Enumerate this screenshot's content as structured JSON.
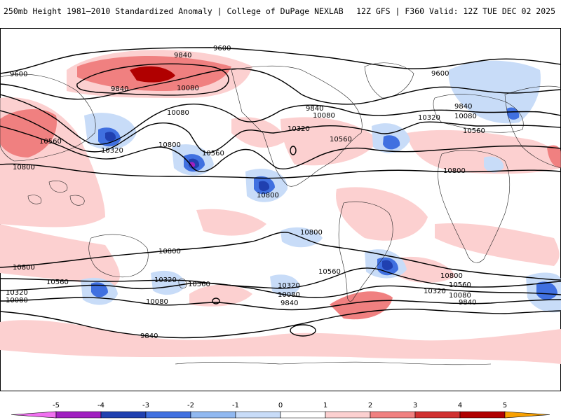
{
  "header": {
    "left_title": "250mb Height 1981–2010 Standardized Anomaly | College of DuPage NEXLAB",
    "right_title": "12Z GFS | F360 Valid: 12Z TUE DEC 02 2025"
  },
  "colorbar": {
    "ticks": [
      "-5",
      "-4",
      "-3",
      "-2",
      "-1",
      "0",
      "1",
      "2",
      "3",
      "4",
      "5"
    ],
    "colors": [
      "#f070f0",
      "#a020c0",
      "#2040b0",
      "#4070e0",
      "#c8dcf8",
      "#ffffff",
      "#fcd0d0",
      "#f08080",
      "#d03030",
      "#b00000",
      "#f8a000"
    ]
  },
  "contour_labels": [
    {
      "text": "9600",
      "name": "contour-label-9600-north-pacific"
    },
    {
      "text": "9600",
      "name": "contour-label-9600-west"
    },
    {
      "text": "9600",
      "name": "contour-label-9600-atlantic"
    },
    {
      "text": "9840",
      "name": "contour-label-9840-siberia"
    },
    {
      "text": "9840",
      "name": "contour-label-9840-west"
    },
    {
      "text": "9840",
      "name": "contour-label-9840-canada"
    },
    {
      "text": "9840",
      "name": "contour-label-9840-europe"
    },
    {
      "text": "10080",
      "name": "contour-label-10080-arctic"
    },
    {
      "text": "10080",
      "name": "contour-label-10080-pacific"
    },
    {
      "text": "10080",
      "name": "contour-label-10080-canada"
    },
    {
      "text": "10080",
      "name": "contour-label-10080-europe"
    },
    {
      "text": "10320",
      "name": "contour-label-10320-us"
    },
    {
      "text": "10320",
      "name": "contour-label-10320-asia"
    },
    {
      "text": "10320",
      "name": "contour-label-10320-atlantic"
    },
    {
      "text": "10560",
      "name": "contour-label-10560-asia"
    },
    {
      "text": "10560",
      "name": "contour-label-10560-pacific"
    },
    {
      "text": "10560",
      "name": "contour-label-10560-us"
    },
    {
      "text": "10560",
      "name": "contour-label-10560-africa"
    },
    {
      "text": "10800",
      "name": "contour-label-10800-west"
    },
    {
      "text": "10800",
      "name": "contour-label-10800-pacific"
    },
    {
      "text": "10800",
      "name": "contour-label-10800-east-pacific"
    },
    {
      "text": "10800",
      "name": "contour-label-10800-africa"
    },
    {
      "text": "10800",
      "name": "contour-label-10800-south-pacific"
    },
    {
      "text": "10800",
      "name": "contour-label-10800-equator"
    },
    {
      "text": "10800",
      "name": "contour-label-10800-sh-west"
    },
    {
      "text": "10800",
      "name": "contour-label-10800-sh-atlantic"
    },
    {
      "text": "10560",
      "name": "contour-label-10560-sh-west"
    },
    {
      "text": "10560",
      "name": "contour-label-10560-sh-pacific"
    },
    {
      "text": "10560",
      "name": "contour-label-10560-sh-atlantic"
    },
    {
      "text": "10560",
      "name": "contour-label-10560-sh-south-america"
    },
    {
      "text": "10320",
      "name": "contour-label-10320-sh-west"
    },
    {
      "text": "10320",
      "name": "contour-label-10320-sh-australia"
    },
    {
      "text": "10320",
      "name": "contour-label-10320-sh-pacific"
    },
    {
      "text": "10320",
      "name": "contour-label-10320-sh-atlantic"
    },
    {
      "text": "10080",
      "name": "contour-label-10080-sh-west"
    },
    {
      "text": "10080",
      "name": "contour-label-10080-sh-pacific"
    },
    {
      "text": "10080",
      "name": "contour-label-10080-sh-east-pacific"
    },
    {
      "text": "10080",
      "name": "contour-label-10080-sh-indian"
    },
    {
      "text": "9840",
      "name": "contour-label-9840-sh-pacific"
    },
    {
      "text": "9840",
      "name": "contour-label-9840-sh-east-pacific"
    },
    {
      "text": "9840",
      "name": "contour-label-9840-sh-indian"
    }
  ]
}
